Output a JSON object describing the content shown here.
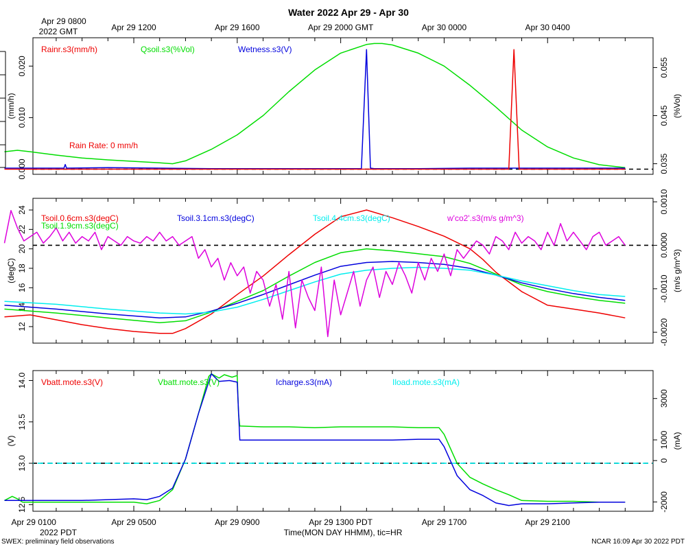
{
  "title": "Water 2022 Apr 29 - Apr 30",
  "colors": {
    "red": "#ee0000",
    "green": "#00dd00",
    "blue": "#0000dd",
    "cyan": "#00eeee",
    "magenta": "#dd00dd",
    "black": "#000000"
  },
  "top_time_axis": {
    "first_label_line1": "Apr 29 0800",
    "first_label_line2": "2022 GMT",
    "labels": [
      "Apr 29 1200",
      "Apr 29 1600",
      "Apr 29 2000 GMT",
      "Apr 30 0000",
      "Apr 30 0400"
    ]
  },
  "bottom_time_axis": {
    "labels": [
      "Apr 29 0100",
      "Apr 29 0500",
      "Apr 29 0900",
      "Apr 29 1300 PDT",
      "Apr 29 1700",
      "Apr 29 2100"
    ],
    "year_label": "2022 PDT",
    "axis_title": "Time(MON DAY HHMM), tic=HR"
  },
  "footer": {
    "left": "SWEX: preliminary field observations",
    "right": "NCAR 16:09 Apr 30 2022 PDT"
  },
  "chart_data": [
    {
      "type": "line",
      "panel": "water",
      "x_unit": "hours since Apr 29 0000 PDT",
      "xlim": [
        0,
        24
      ],
      "left_axis": {
        "label": "(mm/h)",
        "ylim": [
          -0.001,
          0.0255
        ],
        "ticks": [
          0.0,
          0.01,
          0.02
        ],
        "tick_labels": [
          "0.000",
          "0.010",
          "0.020"
        ]
      },
      "right_axis": {
        "label": "(%Vol)",
        "ylim": [
          0.0328,
          0.0612
        ],
        "ticks": [
          0.035,
          0.045,
          0.055
        ],
        "tick_labels": [
          "0.035",
          "0.045",
          "0.055"
        ]
      },
      "legend": [
        "Rainr.s3(mm/h)",
        "Qsoil.s3(%Vol)",
        "Wetness.s3(V)"
      ],
      "annotation": "Rain Rate: 0 mm/h",
      "series": [
        {
          "name": "Qsoil.s3(%Vol)",
          "color": "green",
          "axis": "right",
          "x": [
            0,
            0.5,
            1,
            2,
            3,
            4,
            5,
            6,
            6.5,
            7,
            8,
            9,
            10,
            11,
            12,
            13,
            14,
            14.3,
            14.6,
            15,
            16,
            17,
            18,
            19,
            20,
            21,
            22,
            23,
            24
          ],
          "y": [
            0.0375,
            0.0378,
            0.0375,
            0.0368,
            0.0362,
            0.0358,
            0.0355,
            0.0352,
            0.035,
            0.0356,
            0.038,
            0.041,
            0.045,
            0.05,
            0.0545,
            0.058,
            0.0598,
            0.06,
            0.06,
            0.0597,
            0.058,
            0.0553,
            0.0513,
            0.0468,
            0.042,
            0.0385,
            0.0362,
            0.0348,
            0.0342
          ]
        },
        {
          "name": "Wetness.s3(V)",
          "color": "blue",
          "axis": "left",
          "x": [
            0,
            2.3,
            2.35,
            2.4,
            4,
            6,
            8,
            10,
            12,
            13.8,
            14.0,
            14.15,
            14.3,
            16,
            18,
            20,
            22,
            24
          ],
          "y": [
            0.0002,
            0.0002,
            0.0009,
            0.0002,
            0.0003,
            0.0002,
            0.0001,
            0.0001,
            0.0001,
            0.0001,
            0.0232,
            0.0002,
            0.0001,
            0.0001,
            0.0002,
            0.0002,
            0.0002,
            0.0002
          ]
        },
        {
          "name": "Rainr.s3(mm/h)",
          "color": "red",
          "axis": "left",
          "x": [
            0,
            19.5,
            19.7,
            19.9,
            24
          ],
          "y": [
            0,
            0,
            0.0232,
            0,
            0
          ]
        }
      ],
      "reference_lines": [
        {
          "axis": "left",
          "value": 0,
          "style": "dashed",
          "color": "black"
        }
      ]
    },
    {
      "type": "line",
      "panel": "soil temperature",
      "xlim": [
        0,
        24
      ],
      "left_axis": {
        "label": "(degC)",
        "ylim": [
          10.3,
          25.2
        ],
        "ticks": [
          12,
          14,
          16,
          18,
          20,
          22,
          24
        ],
        "tick_labels": [
          "12",
          "14",
          "16",
          "18",
          "20",
          "22",
          "24"
        ]
      },
      "right_axis": {
        "label": "(m/s g/m^3)",
        "ylim": [
          -0.00225,
          0.00108
        ],
        "ticks": [
          -0.002,
          -0.001,
          0.0,
          0.001
        ],
        "tick_labels": [
          "-0.0020",
          "-0.0010",
          "0.0000",
          "0.0010"
        ]
      },
      "legend": [
        "Tsoil.0.6cm.s3(degC)",
        "Tsoil.1.9cm.s3(degC)",
        "Tsoil.3.1cm.s3(degC)",
        "Tsoil.4.4cm.s3(degC)",
        "w'co2'.s3(m/s g/m^3)"
      ],
      "series": [
        {
          "name": "Tsoil.0.6cm.s3(degC)",
          "color": "red",
          "axis": "left",
          "x": [
            0,
            1,
            2,
            3,
            4,
            5,
            6,
            6.5,
            7,
            8,
            9,
            10,
            11,
            12,
            13,
            14,
            15,
            16,
            17,
            18,
            18.5,
            19,
            20,
            21,
            22,
            23,
            24
          ],
          "y": [
            13.0,
            13.2,
            12.7,
            12.2,
            11.8,
            11.5,
            11.3,
            11.3,
            11.8,
            13.3,
            15.3,
            17.2,
            19.4,
            21.5,
            23.3,
            24.0,
            23.2,
            22.3,
            21.3,
            20.0,
            18.9,
            17.6,
            15.6,
            14.2,
            13.8,
            13.4,
            12.9
          ]
        },
        {
          "name": "Tsoil.1.9cm.s3(degC)",
          "color": "green",
          "axis": "left",
          "x": [
            0,
            2,
            4,
            6,
            7,
            8,
            9,
            10,
            11,
            12,
            13,
            14,
            15,
            16,
            17,
            18,
            19,
            20,
            21,
            22,
            23,
            24
          ],
          "y": [
            13.8,
            13.4,
            12.9,
            12.4,
            12.6,
            13.5,
            14.6,
            15.7,
            17.2,
            18.6,
            19.6,
            20.0,
            19.8,
            19.5,
            19.2,
            18.5,
            17.4,
            16.3,
            15.6,
            15.1,
            14.7,
            14.4
          ]
        },
        {
          "name": "Tsoil.3.1cm.s3(degC)",
          "color": "blue",
          "axis": "left",
          "x": [
            0,
            2,
            4,
            6,
            7,
            8,
            9,
            10,
            11,
            12,
            13,
            14,
            15,
            16,
            17,
            18,
            19,
            20,
            21,
            22,
            23,
            24
          ],
          "y": [
            14.2,
            13.8,
            13.3,
            12.9,
            13.0,
            13.6,
            14.4,
            15.3,
            16.3,
            17.3,
            18.2,
            18.6,
            18.7,
            18.6,
            18.4,
            18.0,
            17.3,
            16.5,
            15.9,
            15.4,
            15.0,
            14.7
          ]
        },
        {
          "name": "Tsoil.4.4cm.s3(degC)",
          "color": "cyan",
          "axis": "left",
          "x": [
            0,
            2,
            4,
            6,
            7,
            8,
            9,
            10,
            11,
            12,
            13,
            14,
            15,
            16,
            17,
            18,
            19,
            20,
            21,
            22,
            23,
            24
          ],
          "y": [
            14.6,
            14.3,
            13.8,
            13.4,
            13.3,
            13.5,
            14.0,
            14.8,
            15.7,
            16.6,
            17.4,
            17.8,
            18.0,
            18.1,
            18.0,
            17.8,
            17.3,
            16.7,
            16.2,
            15.7,
            15.3,
            15.1
          ]
        },
        {
          "name": "w'co2'.s3(m/s g/m^3)",
          "color": "magenta",
          "axis": "right",
          "x": [
            0,
            0.25,
            0.5,
            0.75,
            1,
            1.25,
            1.5,
            1.75,
            2,
            2.25,
            2.5,
            2.75,
            3,
            3.25,
            3.5,
            3.75,
            4,
            4.25,
            4.5,
            4.75,
            5,
            5.25,
            5.5,
            5.75,
            6,
            6.25,
            6.5,
            6.75,
            7,
            7.25,
            7.5,
            7.75,
            8,
            8.25,
            8.5,
            8.75,
            9,
            9.25,
            9.5,
            9.75,
            10,
            10.25,
            10.5,
            10.75,
            11,
            11.25,
            11.5,
            11.75,
            12,
            12.25,
            12.5,
            12.75,
            13,
            13.25,
            13.5,
            13.75,
            14,
            14.25,
            14.5,
            14.75,
            15,
            15.25,
            15.5,
            15.75,
            16,
            16.25,
            16.5,
            16.75,
            17,
            17.25,
            17.5,
            17.75,
            18,
            18.25,
            18.5,
            18.75,
            19,
            19.25,
            19.5,
            19.75,
            20,
            20.25,
            20.5,
            20.75,
            21,
            21.25,
            21.5,
            21.75,
            22,
            22.25,
            22.5,
            22.75,
            23,
            23.25,
            23.5,
            23.75,
            24
          ],
          "y": [
            5e-05,
            0.0008,
            0.0004,
            0.0001,
            0.0002,
            0.0003,
            5e-05,
            0.0002,
            0.0004,
            0.0001,
            0.0003,
            5e-05,
            0.0002,
            0.0001,
            0.0003,
            -0.0001,
            0.0002,
            0.0001,
            0.0,
            0.0002,
            0.0001,
            5e-05,
            0.0002,
            0.0001,
            0.0003,
            0.0001,
            0.0002,
            0.0,
            0.0001,
            0.0002,
            -0.0003,
            -0.0001,
            -0.0005,
            -0.0003,
            -0.0008,
            -0.0004,
            -0.0007,
            -0.0005,
            -0.0011,
            -0.0006,
            -0.0008,
            -0.0014,
            -0.0009,
            -0.0017,
            -0.0006,
            -0.0019,
            -0.0008,
            -0.0012,
            -0.0015,
            -0.0005,
            -0.0021,
            -0.0008,
            -0.0016,
            -0.0011,
            -0.0006,
            -0.0014,
            -0.0008,
            -0.0005,
            -0.0012,
            -0.0006,
            -0.0009,
            -0.0004,
            -0.0007,
            -0.0011,
            -0.0004,
            -0.0008,
            -0.0003,
            -0.0006,
            -0.0002,
            -0.0007,
            -0.0001,
            -0.0003,
            -0.0001,
            0.0001,
            0.0,
            -0.0002,
            0.0002,
            0.0001,
            -0.0001,
            0.0003,
            5e-05,
            0.0002,
            0.0001,
            -0.0001,
            0.0003,
            0.0,
            0.0005,
            0.0001,
            0.0003,
            0.0001,
            -0.0001,
            0.0002,
            0.0003,
            0.0,
            0.0001,
            0.0002,
            0.0
          ]
        }
      ],
      "reference_lines": [
        {
          "axis": "right",
          "value": 0,
          "style": "dashed",
          "color": "black"
        }
      ]
    },
    {
      "type": "line",
      "panel": "power",
      "xlim": [
        0,
        24
      ],
      "left_axis": {
        "label": "(V)",
        "ylim": [
          12.42,
          14.12
        ],
        "ticks": [
          12.5,
          13.0,
          13.5,
          14.0
        ],
        "tick_labels": [
          "12.5",
          "13.0",
          "13.5",
          "14.0"
        ]
      },
      "right_axis": {
        "label": "(mA)",
        "ylim": [
          -2450,
          4350
        ],
        "ticks": [
          -2000,
          0,
          1000,
          3000
        ],
        "tick_labels": [
          "-2000",
          "0",
          "1000",
          "3000"
        ]
      },
      "legend": [
        "Vbatt.mote.s3(V)",
        "Vbatt.mote.s3(V)",
        "Icharge.s3(mA)",
        "Iload.mote.s3(mA)"
      ],
      "series": [
        {
          "name": "Vbatt.mote.s3(V)",
          "color": "green",
          "axis": "left",
          "x": [
            0,
            0.3,
            0.5,
            0.7,
            1,
            2,
            3,
            4,
            5,
            5.5,
            6,
            6.5,
            7,
            7.5,
            7.9,
            8,
            8.3,
            8.5,
            8.8,
            9,
            9.05,
            9.1,
            10,
            11,
            12,
            13,
            14,
            15,
            16,
            16.8,
            17,
            17.5,
            18,
            18.5,
            19,
            19.5,
            20,
            21,
            22,
            23,
            24
          ],
          "y": [
            12.55,
            12.6,
            12.57,
            12.53,
            12.53,
            12.53,
            12.53,
            12.53,
            12.53,
            12.51,
            12.55,
            12.68,
            13.05,
            13.6,
            14.05,
            14.08,
            14.03,
            14.07,
            14.04,
            14.06,
            13.6,
            13.45,
            13.44,
            13.44,
            13.43,
            13.44,
            13.44,
            13.44,
            13.43,
            13.43,
            13.35,
            13.0,
            12.83,
            12.75,
            12.68,
            12.62,
            12.55,
            12.54,
            12.54,
            12.53,
            12.53
          ]
        },
        {
          "name": "Icharge.s3(mA)",
          "color": "blue",
          "axis": "left",
          "x": [
            0,
            1,
            2,
            3,
            4,
            5,
            5.5,
            6,
            6.5,
            7,
            7.5,
            8,
            8.3,
            8.7,
            9,
            9.1,
            10,
            11,
            12,
            13,
            14,
            15,
            16,
            16.8,
            17,
            17.5,
            18,
            18.5,
            19,
            19.5,
            20,
            21,
            22,
            23,
            24
          ],
          "y": [
            12.55,
            12.55,
            12.55,
            12.55,
            12.56,
            12.57,
            12.56,
            12.6,
            12.7,
            13.05,
            13.6,
            14.08,
            13.99,
            14.0,
            13.98,
            13.28,
            13.28,
            13.28,
            13.28,
            13.28,
            13.28,
            13.28,
            13.29,
            13.29,
            13.2,
            12.85,
            12.68,
            12.61,
            12.52,
            12.49,
            12.51,
            12.51,
            12.52,
            12.53,
            12.53
          ]
        }
      ],
      "reference_lines": [
        {
          "axis": "left",
          "value": 13.0,
          "style": "dashed",
          "color": "black"
        },
        {
          "axis": "left",
          "value": 13.0,
          "style": "dashed",
          "color": "cyan"
        }
      ]
    }
  ]
}
